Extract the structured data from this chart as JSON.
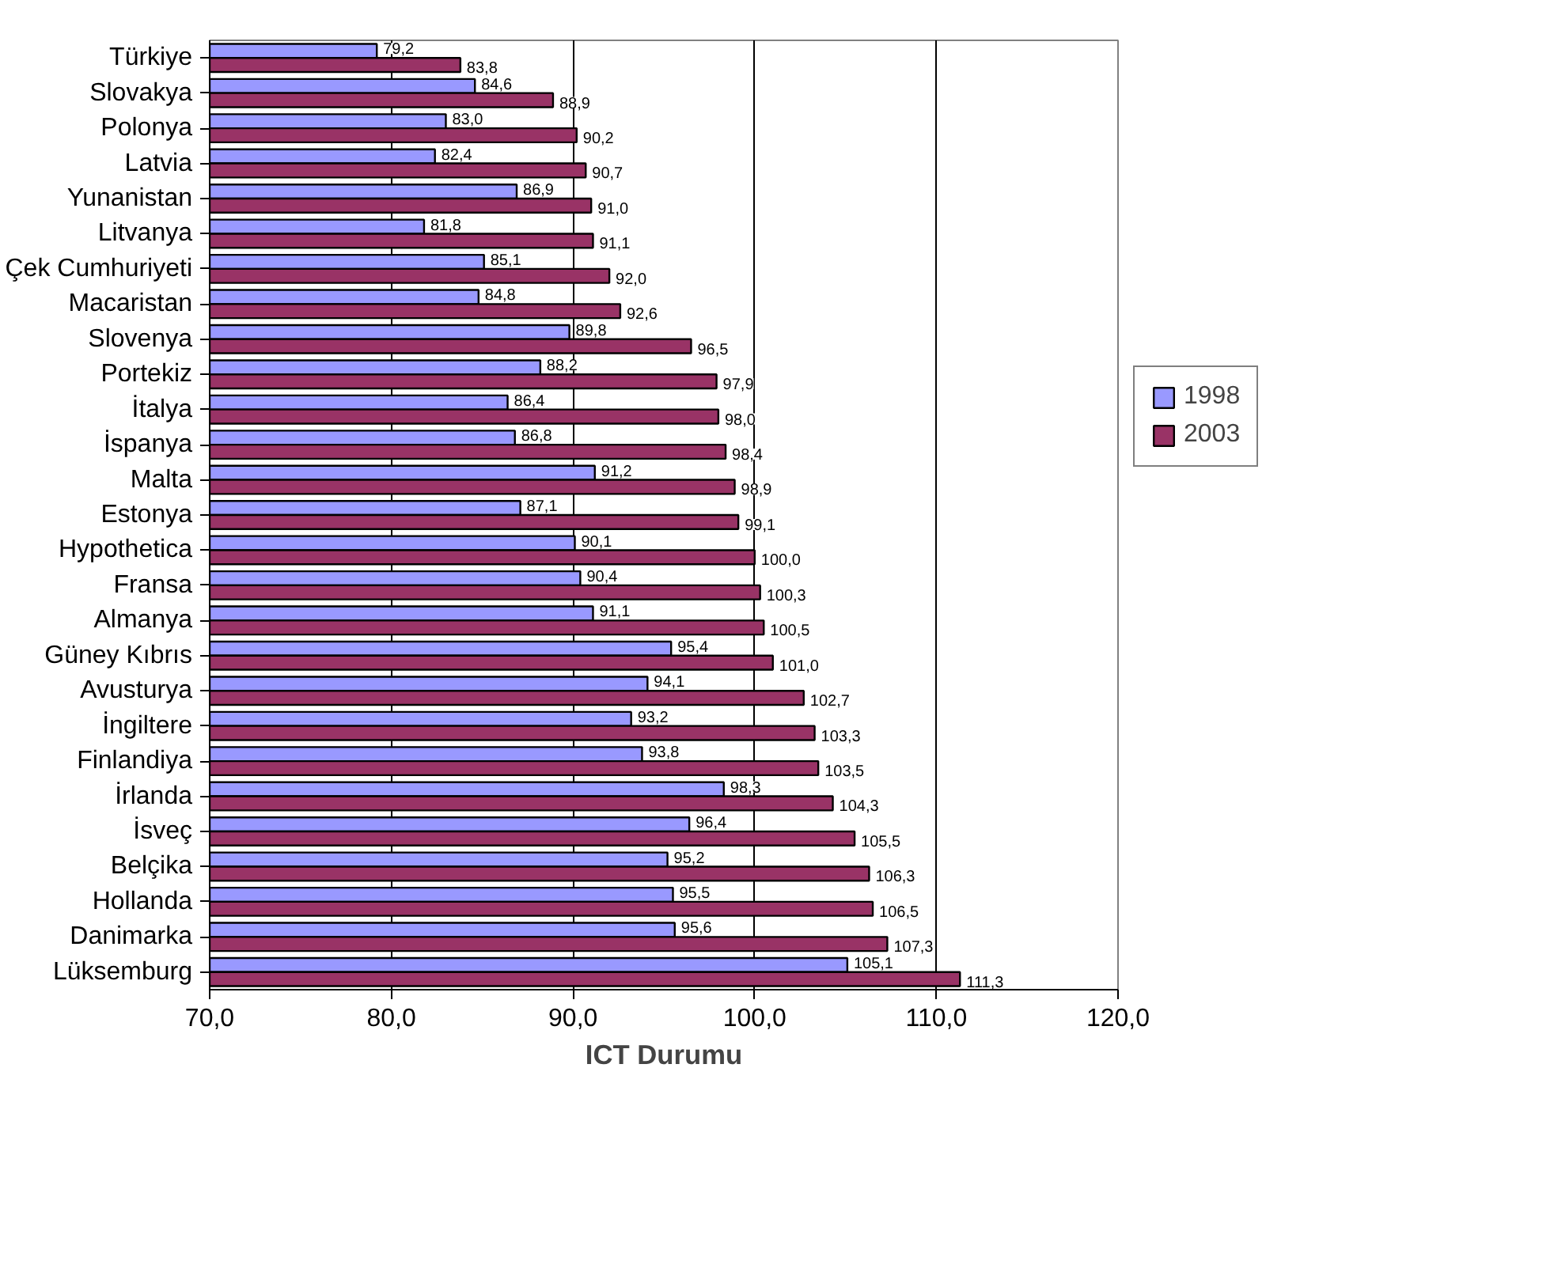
{
  "chart_data": {
    "type": "bar",
    "orientation": "horizontal",
    "xlabel": "ICT Durumu",
    "categories": [
      "Türkiye",
      "Slovakya",
      "Polonya",
      "Latvia",
      "Yunanistan",
      "Litvanya",
      "Çek Cumhuriyeti",
      "Macaristan",
      "Slovenya",
      "Portekiz",
      "İtalya",
      "İspanya",
      "Malta",
      "Estonya",
      "Hypothetica",
      "Fransa",
      "Almanya",
      "Güney Kıbrıs",
      "Avusturya",
      "İngiltere",
      "Finlandiya",
      "İrlanda",
      "İsveç",
      "Belçika",
      "Hollanda",
      "Danimarka",
      "Lüksemburg"
    ],
    "series": [
      {
        "name": "1998",
        "color": "#9999ff",
        "values": [
          79.2,
          84.6,
          83.0,
          82.4,
          86.9,
          81.8,
          85.1,
          84.8,
          89.8,
          88.2,
          86.4,
          86.8,
          91.2,
          87.1,
          90.1,
          90.4,
          91.1,
          95.4,
          94.1,
          93.2,
          93.8,
          98.3,
          96.4,
          95.2,
          95.5,
          95.6,
          105.1
        ],
        "value_labels": [
          "79,2",
          "84,6",
          "83,0",
          "82,4",
          "86,9",
          "81,8",
          "85,1",
          "84,8",
          "89,8",
          "88,2",
          "86,4",
          "86,8",
          "91,2",
          "87,1",
          "90,1",
          "90,4",
          "91,1",
          "95,4",
          "94,1",
          "93,2",
          "93,8",
          "98,3",
          "96,4",
          "95,2",
          "95,5",
          "95,6",
          "105,1"
        ]
      },
      {
        "name": "2003",
        "color": "#993366",
        "values": [
          83.8,
          88.9,
          90.2,
          90.7,
          91.0,
          91.1,
          92.0,
          92.6,
          96.5,
          97.9,
          98.0,
          98.4,
          98.9,
          99.1,
          100.0,
          100.3,
          100.5,
          101.0,
          102.7,
          103.3,
          103.5,
          104.3,
          105.5,
          106.3,
          106.5,
          107.3,
          111.3
        ],
        "value_labels": [
          "83,8",
          "88,9",
          "90,2",
          "90,7",
          "91,0",
          "91,1",
          "92,0",
          "92,6",
          "96,5",
          "97,9",
          "98,0",
          "98,4",
          "98,9",
          "99,1",
          "100,0",
          "100,3",
          "100,5",
          "101,0",
          "102,7",
          "103,3",
          "103,5",
          "104,3",
          "105,5",
          "106,3",
          "106,5",
          "107,3",
          "111,3"
        ]
      }
    ],
    "xlim": [
      70,
      120
    ],
    "xticks": [
      {
        "value": 70,
        "label": "70,0"
      },
      {
        "value": 80,
        "label": "80,0"
      },
      {
        "value": 90,
        "label": "90,0"
      },
      {
        "value": 100,
        "label": "100,0"
      },
      {
        "value": 110,
        "label": "110,0"
      },
      {
        "value": 120,
        "label": "120,0"
      }
    ],
    "grid": "x",
    "legend": "right"
  }
}
